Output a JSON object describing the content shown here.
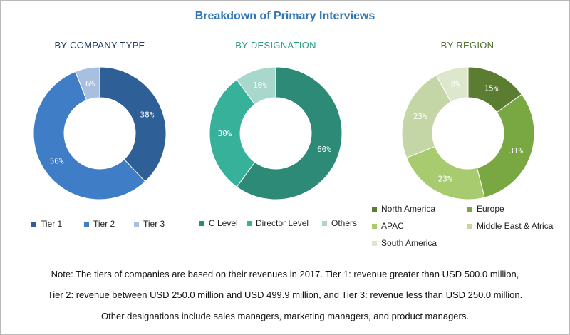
{
  "title": "Breakdown of Primary Interviews",
  "note": {
    "line1": "Note: The tiers of companies are based on their revenues in 2017. Tier 1: revenue greater than USD 500.0 million,",
    "line2": "Tier 2: revenue between USD 250.0 million and USD 499.9 million, and Tier 3: revenue less than USD 250.0 million.",
    "line3": "Other designations include sales managers, marketing managers, and product managers."
  },
  "chart_data": [
    {
      "type": "pie",
      "title": "BY COMPANY TYPE",
      "categories": [
        "Tier 1",
        "Tier 2",
        "Tier 3"
      ],
      "values": [
        38,
        56,
        6
      ],
      "labels": [
        "38%",
        "56%",
        "6%"
      ],
      "colors": [
        "#2e5f97",
        "#3f7ec6",
        "#a9bfe0"
      ],
      "label_colors": [
        "#ffffff",
        "#ffffff",
        "#ffffff"
      ],
      "donut": true,
      "legend": "bottom"
    },
    {
      "type": "pie",
      "title": "BY DESIGNATION",
      "categories": [
        "C Level",
        "Director Level",
        "Others"
      ],
      "values": [
        60,
        30,
        10
      ],
      "labels": [
        "60%",
        "30%",
        "10%"
      ],
      "colors": [
        "#2d8a76",
        "#37b19a",
        "#a8d8cc"
      ],
      "label_colors": [
        "#ffffff",
        "#ffffff",
        "#ffffff"
      ],
      "donut": true,
      "legend": "bottom"
    },
    {
      "type": "pie",
      "title": "BY REGION",
      "categories": [
        "North America",
        "Europe",
        "APAC",
        "Middle East & Africa",
        "South America"
      ],
      "values": [
        15,
        31,
        23,
        23,
        8
      ],
      "labels": [
        "15%",
        "31%",
        "23%",
        "23%",
        "8%"
      ],
      "colors": [
        "#5a7d32",
        "#79a842",
        "#a9cb6f",
        "#c5d6a6",
        "#dde7cc"
      ],
      "label_colors": [
        "#ffffff",
        "#ffffff",
        "#ffffff",
        "#ffffff",
        "#ffffff"
      ],
      "donut": true,
      "legend": "bottom"
    }
  ]
}
